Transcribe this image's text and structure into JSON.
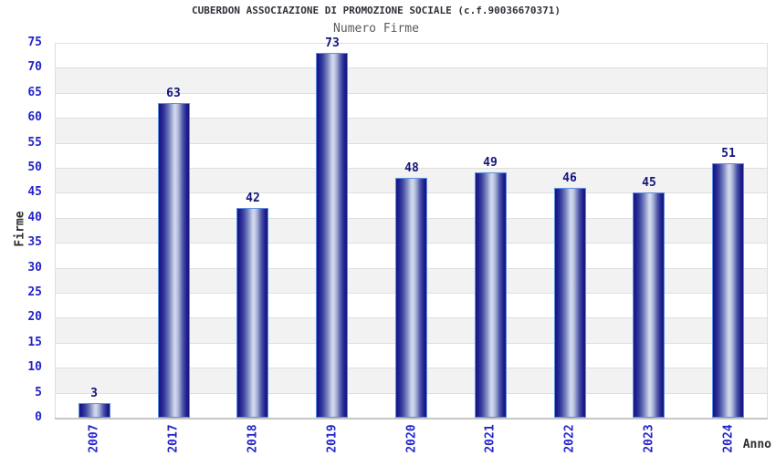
{
  "chart_data": {
    "type": "bar",
    "title": "CUBERDON ASSOCIAZIONE DI PROMOZIONE SOCIALE (c.f.90036670371)",
    "subtitle": "Numero Firme",
    "xlabel": "Anno",
    "ylabel": "Firme",
    "categories": [
      "2007",
      "2017",
      "2018",
      "2019",
      "2020",
      "2021",
      "2022",
      "2023",
      "2024"
    ],
    "values": [
      3,
      63,
      42,
      73,
      48,
      49,
      46,
      45,
      51
    ],
    "ylim": [
      0,
      75
    ],
    "ytick_step": 5,
    "grid": true,
    "legend": "none",
    "band_colors": [
      "#ffffff",
      "#f2f2f2"
    ],
    "colors": {
      "bar_dark": "#17177e",
      "bar_highlight": "#d3daee",
      "bar_border": "#5f8fe0",
      "axis_tick_text": "#2424cc",
      "value_label": "#14147d",
      "title": "#31313b",
      "subtitle": "#5a5a5a",
      "axis_title": "#2e2e2e",
      "gridline": "#dedede",
      "axis_line": "#c6c6c6"
    }
  }
}
